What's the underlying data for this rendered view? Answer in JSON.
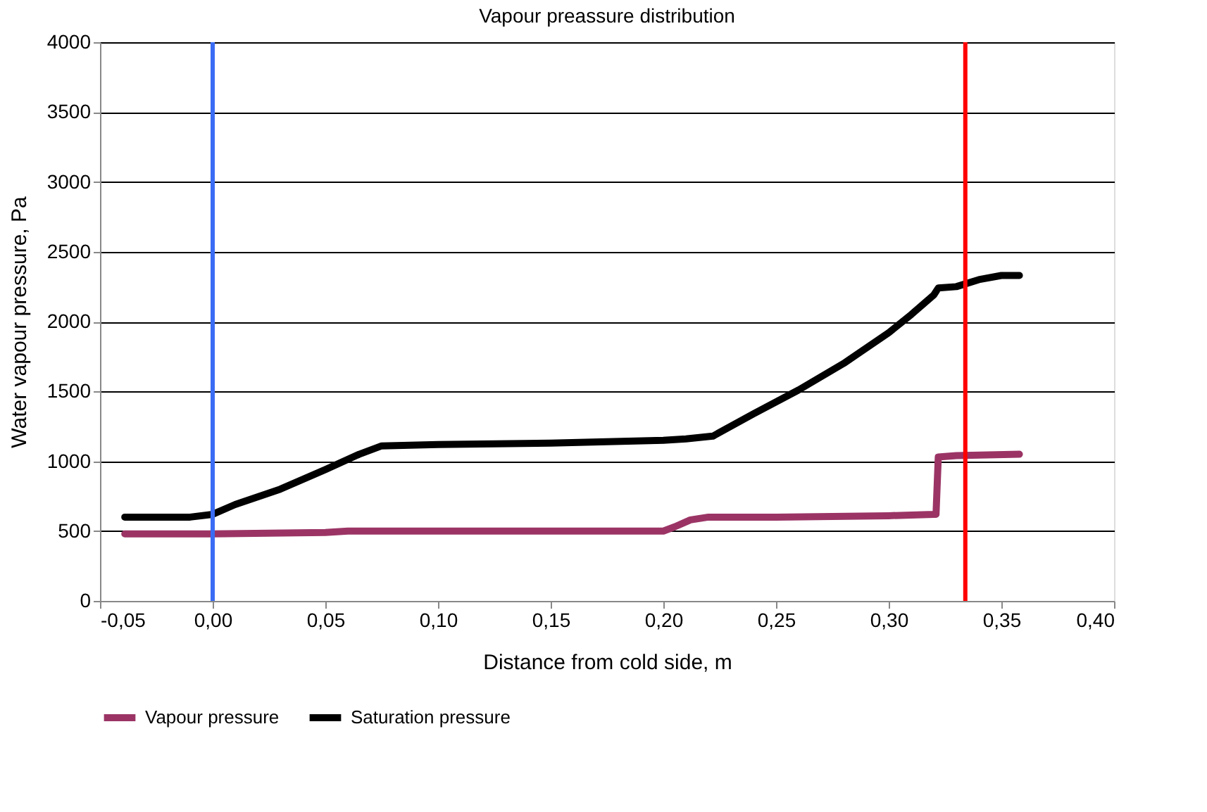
{
  "chart_data": {
    "type": "line",
    "title": "Vapour preassure distribution",
    "xlabel": "Distance from cold side, m",
    "ylabel": "Water vapour pressure, Pa",
    "xlim": [
      -0.05,
      0.4
    ],
    "xticks": [
      {
        "value": -0.05,
        "label": "-0,05"
      },
      {
        "value": 0,
        "label": "0,00"
      },
      {
        "value": 0.05,
        "label": "0,05"
      },
      {
        "value": 0.1,
        "label": "0,10"
      },
      {
        "value": 0.15,
        "label": "0,15"
      },
      {
        "value": 0.2,
        "label": "0,20"
      },
      {
        "value": 0.25,
        "label": "0,25"
      },
      {
        "value": 0.3,
        "label": "0,30"
      },
      {
        "value": 0.35,
        "label": "0,35"
      },
      {
        "value": 0.4,
        "label": "0,40"
      }
    ],
    "ylim": [
      0,
      4000
    ],
    "yticks": [
      0,
      500,
      1000,
      1500,
      2000,
      2500,
      3000,
      3500,
      4000
    ],
    "grid": "y",
    "legend": "bottom",
    "marker": "none",
    "line_style": "solid",
    "series": [
      {
        "name": "Vapour pressure",
        "color": "#9b3465",
        "x": [
          -0.039,
          0,
          0.05,
          0.06,
          0.1,
          0.15,
          0.2,
          0.205,
          0.212,
          0.22,
          0.25,
          0.3,
          0.32,
          0.321,
          0.322,
          0.33,
          0.358
        ],
        "values": [
          480,
          480,
          490,
          500,
          500,
          500,
          500,
          530,
          580,
          600,
          600,
          610,
          620,
          620,
          1030,
          1040,
          1050
        ]
      },
      {
        "name": "Saturation pressure",
        "color": "#000000",
        "x": [
          -0.039,
          -0.01,
          0,
          0.01,
          0.03,
          0.05,
          0.065,
          0.075,
          0.1,
          0.15,
          0.2,
          0.21,
          0.222,
          0.24,
          0.26,
          0.28,
          0.3,
          0.31,
          0.32,
          0.322,
          0.33,
          0.34,
          0.35,
          0.358
        ],
        "values": [
          600,
          600,
          620,
          690,
          800,
          940,
          1050,
          1110,
          1120,
          1130,
          1150,
          1160,
          1180,
          1340,
          1510,
          1700,
          1920,
          2050,
          2190,
          2240,
          2250,
          2300,
          2330,
          2330
        ]
      }
    ],
    "ref_lines": [
      {
        "axis": "x",
        "value": 0,
        "color": "#3a6cf4"
      },
      {
        "axis": "x",
        "value": 0.334,
        "color": "#ff0000"
      }
    ]
  }
}
